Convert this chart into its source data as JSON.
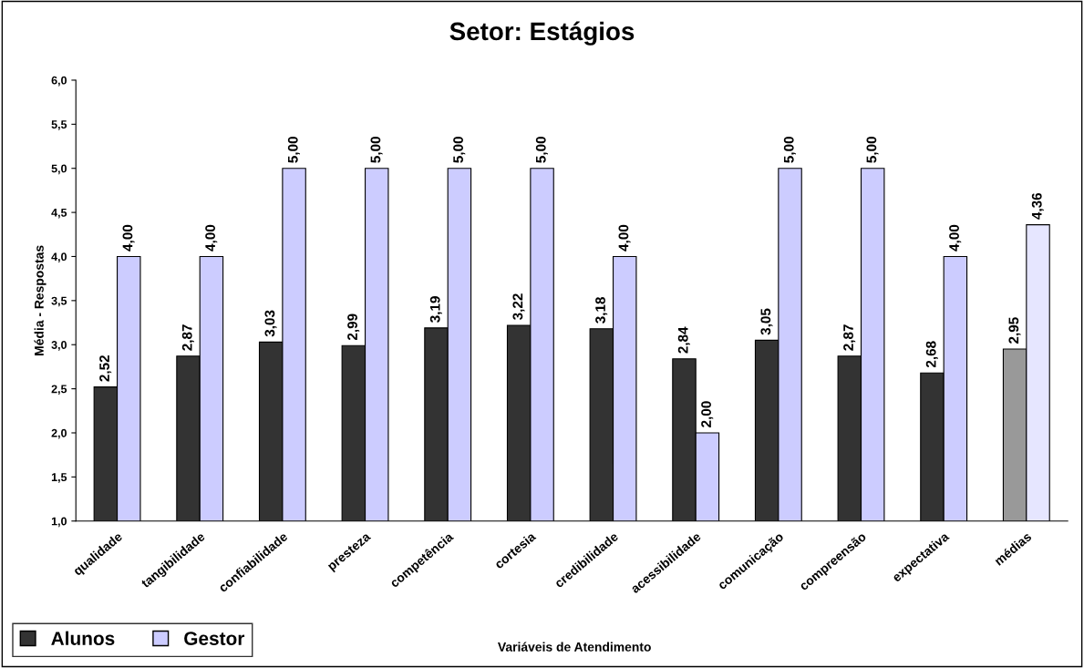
{
  "chart_data": {
    "type": "bar",
    "title": "Setor: Estágios",
    "xlabel": "Variáveis de Atendimento",
    "ylabel": "Média - Respostas",
    "categories": [
      "qualidade",
      "tangibilidade",
      "confiabilidade",
      "presteza",
      "competência",
      "cortesia",
      "credibilidade",
      "acessibilidade",
      "comunicação",
      "compreensão",
      "expectativa",
      "médias"
    ],
    "series": [
      {
        "name": "Alunos",
        "color": "#333333",
        "colors": [
          "#333333",
          "#333333",
          "#333333",
          "#333333",
          "#333333",
          "#333333",
          "#333333",
          "#333333",
          "#333333",
          "#333333",
          "#333333",
          "#999999"
        ],
        "values": [
          2.52,
          2.87,
          3.03,
          2.99,
          3.19,
          3.22,
          3.18,
          2.84,
          3.05,
          2.87,
          2.68,
          2.95
        ],
        "value_labels": [
          "2,52",
          "2,87",
          "3,03",
          "2,99",
          "3,19",
          "3,22",
          "3,18",
          "2,84",
          "3,05",
          "2,87",
          "2,68",
          "2,95"
        ]
      },
      {
        "name": "Gestor",
        "color": "#ccccff",
        "colors": [
          "#ccccff",
          "#ccccff",
          "#ccccff",
          "#ccccff",
          "#ccccff",
          "#ccccff",
          "#ccccff",
          "#ccccff",
          "#ccccff",
          "#ccccff",
          "#ccccff",
          "#e6e6ff"
        ],
        "values": [
          4.0,
          4.0,
          5.0,
          5.0,
          5.0,
          5.0,
          4.0,
          2.0,
          5.0,
          5.0,
          4.0,
          4.36
        ],
        "value_labels": [
          "4,00",
          "4,00",
          "5,00",
          "5,00",
          "5,00",
          "5,00",
          "4,00",
          "2,00",
          "5,00",
          "5,00",
          "4,00",
          "4,36"
        ]
      }
    ],
    "ylim": [
      1,
      6
    ],
    "yticks": [
      {
        "value": 1,
        "label": "1,0"
      },
      {
        "value": 1.5,
        "label": "1,5"
      },
      {
        "value": 2,
        "label": "2,0"
      },
      {
        "value": 2.5,
        "label": "2,5"
      },
      {
        "value": 3,
        "label": "3,0"
      },
      {
        "value": 3.5,
        "label": "3,5"
      },
      {
        "value": 4,
        "label": "4,0"
      },
      {
        "value": 4.5,
        "label": "4,5"
      },
      {
        "value": 5,
        "label": "5,0"
      },
      {
        "value": 5.5,
        "label": "5,5"
      },
      {
        "value": 6,
        "label": "6,0"
      }
    ],
    "grid": false,
    "legend": "bottom left"
  }
}
